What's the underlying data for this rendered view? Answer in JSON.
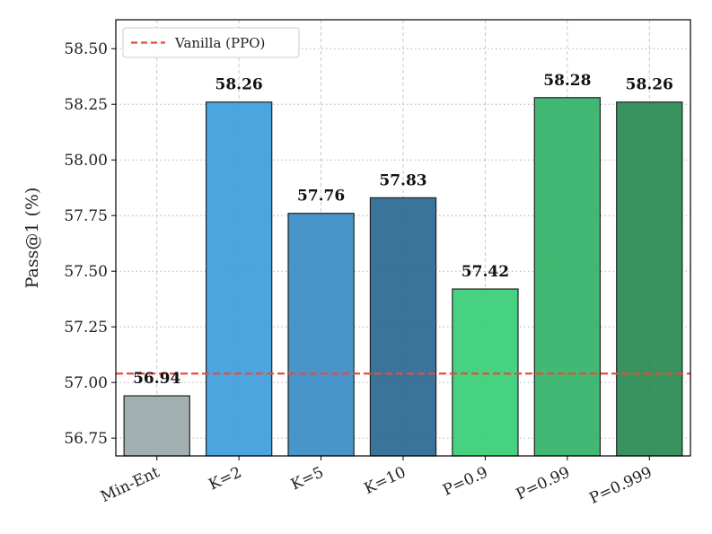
{
  "chart_data": {
    "type": "bar",
    "title": "",
    "xlabel": "",
    "ylabel": "Pass@1 (%)",
    "categories": [
      "Min-Ent",
      "K=2",
      "K=5",
      "K=10",
      "P=0.9",
      "P=0.99",
      "P=0.999"
    ],
    "values": [
      56.94,
      58.26,
      57.76,
      57.83,
      57.42,
      58.28,
      58.26
    ],
    "value_labels": [
      "56.94",
      "58.26",
      "57.76",
      "57.83",
      "57.42",
      "58.28",
      "58.26"
    ],
    "colors": [
      "#95a5a6",
      "#3498db",
      "#2e86c1",
      "#1f618d",
      "#2ecc71",
      "#27ae60",
      "#1e8449"
    ],
    "ylim": [
      56.67,
      58.63
    ],
    "yticks": [
      56.75,
      57.0,
      57.25,
      57.5,
      57.75,
      58.0,
      58.25,
      58.5
    ],
    "ytick_labels": [
      "56.75",
      "57.00",
      "57.25",
      "57.50",
      "57.75",
      "58.00",
      "58.25",
      "58.50"
    ],
    "grid": true,
    "reference_line": {
      "label": "Vanilla (PPO)",
      "value": 57.04,
      "color": "#e74c3c",
      "style": "dashed"
    },
    "legend": {
      "position": "top-left",
      "entries": [
        "Vanilla (PPO)"
      ]
    }
  }
}
